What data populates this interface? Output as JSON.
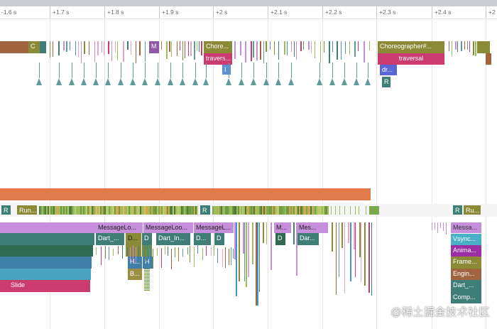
{
  "timeline": {
    "ticks": [
      "-1.6 s",
      "+1.7 s",
      "+1.8 s",
      "+1.9 s",
      "+2 s",
      "+2.1 s",
      "+2.2 s",
      "+2.3 s",
      "+2.4 s",
      "+2"
    ]
  },
  "main_thread": {
    "c_label": "C",
    "m_label": "M",
    "chore_label": "Chore...",
    "travers_label": "travers...",
    "i_label": "I",
    "choreographer_label": "Choreographer#...",
    "traversal_label": "traversal",
    "draw_label": "dr...",
    "r_label": "R"
  },
  "raster_thread": {
    "r1": "R",
    "run": "Run...",
    "r2": "R",
    "r3": "R",
    "ru": "Ru..."
  },
  "ui_thread": {
    "message_loop_1": "MessageLo...",
    "message_loop_2": "MessageLoo...",
    "message_loop_3": "MessageL...",
    "m_short": "M...",
    "mes": "Mes...",
    "mess_right": "Messa...",
    "dart_1": "Dart_...",
    "d1": "D...",
    "d2": "D",
    "dart_in": "Dart_In...",
    "d3": "D...",
    "d4": "D",
    "d5": "D",
    "dar": "Dar...",
    "h1": "H...",
    "h2": "H",
    "b": "B...",
    "slide": "Slide",
    "vsync": "Vsync...",
    "anima": "Anima...",
    "frame": "Frame...",
    "engin": "Engin...",
    "dart_r": "Dart_...",
    "comp": "Comp..."
  },
  "watermark": "@稀土掘金技术社区",
  "colors": {
    "brown": "#a0653e",
    "olive": "#8b8a37",
    "teal": "#3f7e77",
    "pink": "#cc3b6f",
    "purple_light": "#c58fdc",
    "orange": "#e17b4c",
    "blue": "#4a93c0",
    "green_light": "#9bbd5c"
  }
}
